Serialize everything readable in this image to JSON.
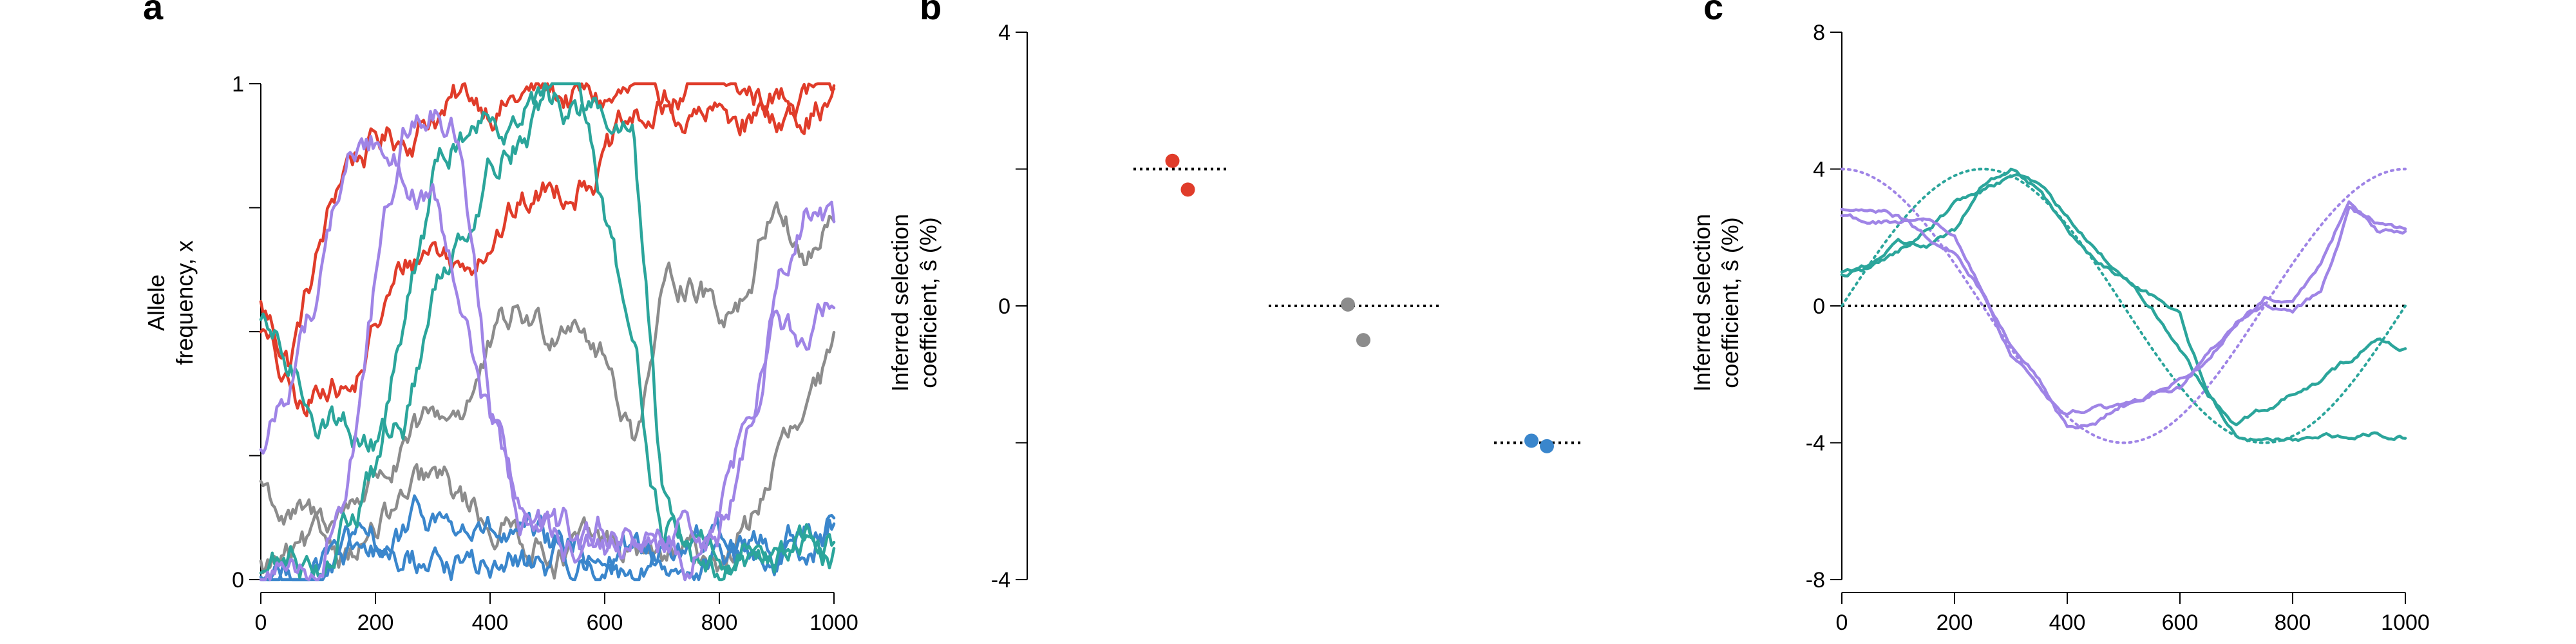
{
  "colors": {
    "red": "#E03C2A",
    "gray": "#8C8C8C",
    "blue": "#3A86CC",
    "teal": "#2BA59B",
    "purple": "#9F84E6"
  },
  "chart_data": [
    {
      "panel": "a",
      "type": "line",
      "xlabel": "",
      "ylabel": [
        "Allele",
        "frequency, x"
      ],
      "xlim": [
        0,
        1000
      ],
      "ylim": [
        0,
        1
      ],
      "xticks": [
        0,
        200,
        400,
        600,
        800,
        1000
      ],
      "xtick_labels": [
        "0",
        "200",
        "400",
        "600",
        "800",
        "1000"
      ],
      "yticks": [
        0,
        0.25,
        0.5,
        0.75,
        1
      ],
      "ytick_labels": [
        "0",
        "",
        "",
        "",
        "1"
      ],
      "series": [
        {
          "color": "red",
          "x": [
            0,
            50,
            100,
            150,
            200,
            250,
            300,
            400,
            500,
            600,
            700,
            800,
            900,
            1000
          ],
          "y": [
            0.55,
            0.45,
            0.65,
            0.85,
            0.88,
            0.9,
            0.95,
            0.97,
            0.98,
            0.96,
            0.97,
            0.98,
            0.97,
            0.97
          ]
        },
        {
          "color": "red",
          "x": [
            0,
            40,
            80,
            120,
            160,
            200,
            250,
            300,
            350,
            400,
            500,
            600,
            650,
            700,
            800,
            900,
            1000
          ],
          "y": [
            0.52,
            0.38,
            0.32,
            0.42,
            0.38,
            0.5,
            0.62,
            0.68,
            0.63,
            0.72,
            0.78,
            0.86,
            0.9,
            0.93,
            0.92,
            0.95,
            0.96
          ]
        },
        {
          "color": "gray",
          "x": [
            0,
            50,
            100,
            150,
            200,
            250,
            300,
            350,
            400,
            450,
            500,
            550,
            600,
            650,
            700,
            750,
            800,
            850,
            900,
            950,
            1000
          ],
          "y": [
            0.2,
            0.12,
            0.1,
            0.15,
            0.22,
            0.25,
            0.3,
            0.35,
            0.45,
            0.52,
            0.5,
            0.58,
            0.45,
            0.3,
            0.55,
            0.62,
            0.55,
            0.6,
            0.8,
            0.65,
            0.72
          ]
        },
        {
          "color": "gray",
          "x": [
            0,
            100,
            200,
            300,
            400,
            500,
            600,
            650,
            700,
            750,
            800,
            850,
            900,
            950,
            1000
          ],
          "y": [
            0.02,
            0.04,
            0.1,
            0.18,
            0.12,
            0.08,
            0.05,
            0.05,
            0.04,
            0.03,
            0.04,
            0.1,
            0.25,
            0.3,
            0.42
          ]
        },
        {
          "color": "blue",
          "x": [
            0,
            100,
            200,
            300,
            400,
            500,
            600,
            700,
            800,
            900,
            1000
          ],
          "y": [
            0.0,
            0.03,
            0.05,
            0.12,
            0.08,
            0.04,
            0.06,
            0.05,
            0.07,
            0.06,
            0.12
          ]
        },
        {
          "color": "blue",
          "x": [
            0,
            100,
            200,
            300,
            400,
            500,
            600,
            700,
            800,
            900,
            1000
          ],
          "y": [
            0.0,
            0.02,
            0.03,
            0.04,
            0.02,
            0.03,
            0.02,
            0.04,
            0.03,
            0.05,
            0.14
          ]
        },
        {
          "color": "teal",
          "x": [
            0,
            50,
            100,
            150,
            200,
            250,
            300,
            350,
            400,
            450,
            500,
            550,
            600,
            650,
            700,
            750,
            800,
            850,
            900,
            950,
            1000
          ],
          "y": [
            0.5,
            0.42,
            0.35,
            0.32,
            0.28,
            0.32,
            0.55,
            0.72,
            0.85,
            0.92,
            0.96,
            0.95,
            0.92,
            0.88,
            0.15,
            0.06,
            0.05,
            0.04,
            0.05,
            0.08,
            0.05
          ]
        },
        {
          "color": "teal",
          "x": [
            0,
            100,
            150,
            200,
            250,
            300,
            350,
            400,
            450,
            500,
            550,
            600,
            650,
            700,
            800,
            900,
            1000
          ],
          "y": [
            0.02,
            0.05,
            0.12,
            0.2,
            0.5,
            0.78,
            0.9,
            0.95,
            0.97,
            0.98,
            0.97,
            0.7,
            0.45,
            0.12,
            0.06,
            0.08,
            0.06
          ]
        },
        {
          "color": "purple",
          "x": [
            0,
            50,
            100,
            150,
            200,
            250,
            300,
            350,
            400,
            450,
            500,
            550,
            600,
            650,
            700,
            750,
            800,
            850,
            900,
            950,
            1000
          ],
          "y": [
            0.25,
            0.4,
            0.6,
            0.85,
            0.88,
            0.85,
            0.75,
            0.5,
            0.3,
            0.15,
            0.08,
            0.05,
            0.1,
            0.08,
            0.05,
            0.06,
            0.08,
            0.25,
            0.55,
            0.48,
            0.55
          ]
        },
        {
          "color": "purple",
          "x": [
            0,
            100,
            150,
            200,
            250,
            300,
            350,
            400,
            450,
            500,
            600,
            700,
            800,
            850,
            900,
            950,
            1000
          ],
          "y": [
            0.0,
            0.05,
            0.2,
            0.6,
            0.9,
            0.95,
            0.88,
            0.4,
            0.15,
            0.08,
            0.05,
            0.04,
            0.1,
            0.3,
            0.6,
            0.75,
            0.68
          ]
        }
      ]
    },
    {
      "panel": "b",
      "type": "scatter",
      "ylabel": [
        "Inferred selection",
        "coefficient, ŝ (%)"
      ],
      "ylim": [
        -4,
        4
      ],
      "yticks": [
        -4,
        -2,
        0,
        2,
        4
      ],
      "ytick_labels": [
        "-4",
        "",
        "0",
        "",
        "4"
      ],
      "groups": [
        {
          "color": "red",
          "true_value": 2,
          "points": [
            2.12,
            1.7
          ]
        },
        {
          "color": "gray",
          "true_value": 0,
          "points": [
            0.02,
            -0.5
          ]
        },
        {
          "color": "blue",
          "true_value": -2,
          "points": [
            -1.97,
            -2.05
          ]
        }
      ]
    },
    {
      "panel": "c",
      "type": "line",
      "ylabel": [
        "Inferred selection",
        "coefficient, ŝ (%)"
      ],
      "xlim": [
        0,
        1000
      ],
      "ylim": [
        -8,
        8
      ],
      "xticks": [
        0,
        200,
        400,
        600,
        800,
        1000
      ],
      "xtick_labels": [
        "0",
        "200",
        "400",
        "600",
        "800",
        "1000"
      ],
      "yticks": [
        -8,
        -4,
        0,
        4,
        8
      ],
      "ytick_labels": [
        "-8",
        "-4",
        "0",
        "4",
        "8"
      ],
      "true_curves": [
        {
          "color": "purple",
          "function": "4*cos(2*pi*t/1000)"
        },
        {
          "color": "teal",
          "function": "4*sin(2*pi*t/1000)"
        }
      ],
      "series": [
        {
          "color": "teal",
          "x": [
            0,
            50,
            100,
            150,
            200,
            250,
            300,
            350,
            400,
            450,
            500,
            550,
            600,
            650,
            700,
            750,
            800,
            850,
            900,
            950,
            1000
          ],
          "y": [
            1.0,
            1.1,
            1.6,
            2.2,
            3.0,
            3.4,
            3.8,
            3.6,
            2.6,
            1.6,
            0.8,
            0.0,
            -1.2,
            -2.6,
            -3.5,
            -3.0,
            -2.6,
            -2.2,
            -1.6,
            -1.0,
            -1.3
          ]
        },
        {
          "color": "teal",
          "x": [
            0,
            50,
            100,
            150,
            200,
            250,
            300,
            350,
            400,
            450,
            500,
            550,
            600,
            650,
            700,
            750,
            800,
            850,
            900,
            950,
            1000
          ],
          "y": [
            0.9,
            1.2,
            2.0,
            1.7,
            2.2,
            3.5,
            4.0,
            3.4,
            2.2,
            1.4,
            0.8,
            0.3,
            -0.2,
            -2.6,
            -3.8,
            -4.0,
            -3.9,
            -3.7,
            -3.8,
            -3.7,
            -3.8
          ]
        },
        {
          "color": "purple",
          "x": [
            0,
            50,
            100,
            150,
            200,
            250,
            300,
            350,
            400,
            450,
            500,
            550,
            600,
            650,
            700,
            750,
            800,
            850,
            900,
            950,
            1000
          ],
          "y": [
            2.8,
            2.8,
            2.6,
            2.0,
            1.6,
            0.4,
            -1.4,
            -2.4,
            -3.2,
            -3.0,
            -3.0,
            -2.6,
            -2.2,
            -1.6,
            -0.5,
            0.3,
            0.1,
            1.2,
            3.0,
            2.2,
            2.2
          ]
        },
        {
          "color": "purple",
          "x": [
            0,
            50,
            100,
            150,
            200,
            250,
            300,
            350,
            400,
            450,
            500,
            550,
            600,
            650,
            700,
            750,
            800,
            850,
            900,
            950,
            1000
          ],
          "y": [
            2.6,
            2.4,
            2.5,
            2.6,
            2.1,
            0.4,
            -1.2,
            -2.2,
            -3.6,
            -3.4,
            -2.8,
            -2.6,
            -2.4,
            -1.4,
            -0.4,
            0.1,
            -0.2,
            0.4,
            2.8,
            2.4,
            2.3
          ]
        }
      ]
    }
  ]
}
